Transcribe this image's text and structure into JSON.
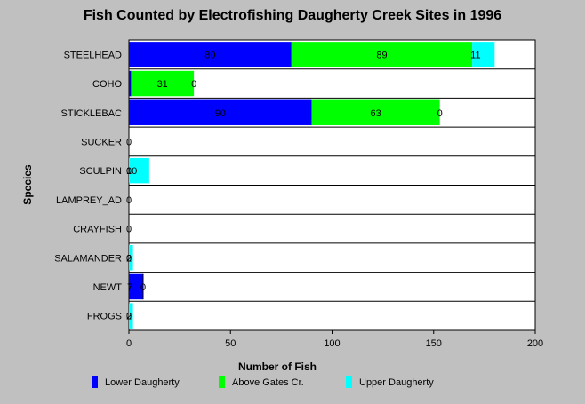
{
  "chart_data": {
    "type": "bar",
    "orientation": "horizontal",
    "stacked": true,
    "title": "Fish Counted by Electrofishing Daugherty Creek Sites in 1996",
    "xlabel": "Number of Fish",
    "ylabel": "Species",
    "xlim": [
      0,
      200
    ],
    "xticks": [
      0,
      50,
      100,
      150,
      200
    ],
    "categories": [
      "STEELHEAD",
      "COHO",
      "STICKLEBAC",
      "SUCKER",
      "SCULPIN",
      "LAMPREY_AD",
      "CRAYFISH",
      "SALAMANDER",
      "NEWT",
      "FROGS"
    ],
    "series": [
      {
        "name": "Lower Daugherty",
        "color": "#0000ff",
        "values": [
          80,
          1,
          90,
          0,
          0,
          0,
          0,
          0,
          7,
          0
        ]
      },
      {
        "name": "Above Gates Cr.",
        "color": "#00ff00",
        "values": [
          89,
          31,
          63,
          0,
          0,
          0,
          0,
          0,
          0,
          0
        ]
      },
      {
        "name": "Upper Daugherty",
        "color": "#00ffff",
        "values": [
          11,
          0,
          0,
          0,
          10,
          0,
          0,
          2,
          0,
          2
        ]
      }
    ],
    "data_labels": [
      [
        "80",
        "89",
        "11"
      ],
      [
        "",
        "31",
        "0"
      ],
      [
        "90",
        "63",
        "0"
      ],
      [
        "0",
        "",
        ""
      ],
      [
        "0",
        "10",
        ""
      ],
      [
        "0",
        "",
        ""
      ],
      [
        "0",
        "",
        ""
      ],
      [
        "0",
        "2",
        ""
      ],
      [
        "7",
        "0",
        ""
      ],
      [
        "0",
        "2",
        ""
      ]
    ],
    "grid": true,
    "legend_position": "bottom"
  }
}
